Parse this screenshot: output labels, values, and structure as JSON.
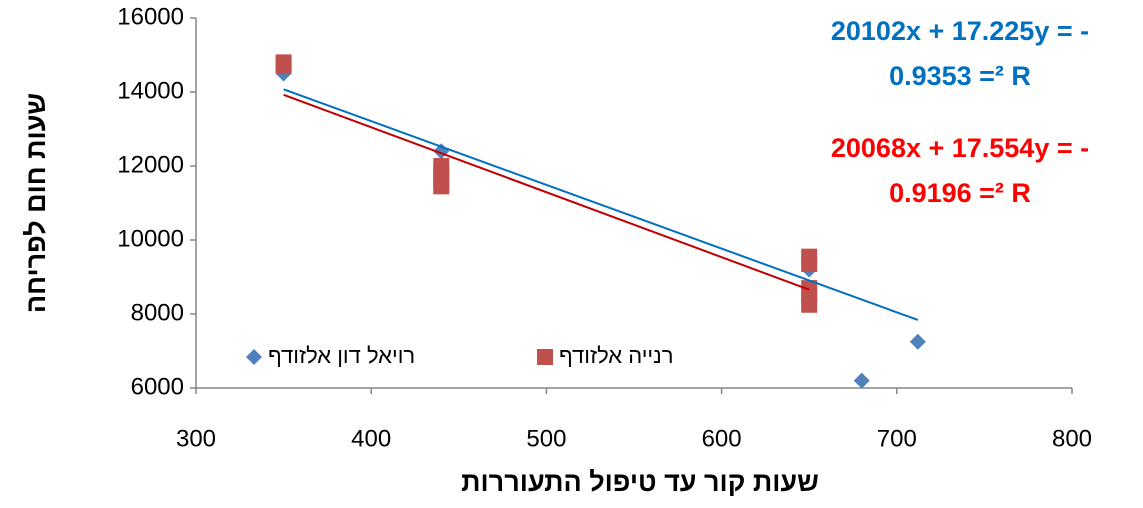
{
  "chart_data": {
    "type": "scatter",
    "xlabel": "שעות קור עד טיפול התעוררות",
    "ylabel": "שעות חום לפריחה",
    "xlim": [
      300,
      800
    ],
    "xticks": [
      300,
      400,
      500,
      600,
      700,
      800
    ],
    "ylim": [
      6000,
      16000
    ],
    "yticks": [
      6000,
      8000,
      10000,
      12000,
      14000,
      16000
    ],
    "legend": "bottom-left",
    "series": [
      {
        "name": "רויאל דון אלזודף",
        "color": "#4f81bd",
        "marker": "diamond",
        "x": [
          350,
          440,
          650,
          680,
          712
        ],
        "values": [
          14500,
          12400,
          9200,
          6200,
          7250
        ],
        "trendline": {
          "color": "#0070c0",
          "x": [
            350,
            712
          ],
          "values": [
            14073,
            7838
          ]
        },
        "annotation": [
          "20102x + 17.225y = -",
          "0.9353 =² R"
        ],
        "annotation_color": "#0070c0"
      },
      {
        "name": "רנייה אלזודף",
        "color": "#c0504d",
        "marker": "square",
        "x": [
          350,
          350,
          440,
          440,
          440,
          440,
          650,
          650,
          650,
          650,
          650
        ],
        "values": [
          14800,
          14700,
          12000,
          11800,
          11600,
          11450,
          9550,
          9350,
          8700,
          8500,
          8250
        ],
        "trendline": {
          "color": "#c00000",
          "x": [
            350,
            650
          ],
          "values": [
            13924,
            8658
          ]
        },
        "annotation": [
          "20068x + 17.554y = -",
          "0.9196 =² R"
        ],
        "annotation_color": "#ff0000"
      }
    ]
  }
}
